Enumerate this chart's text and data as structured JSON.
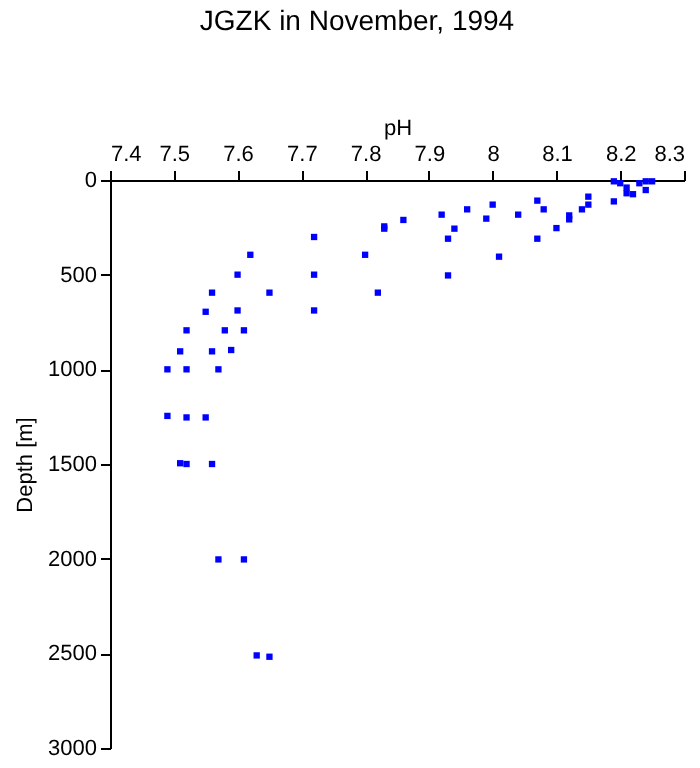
{
  "chart_data": {
    "type": "scatter",
    "title": "JGZK in November, 1994",
    "xlabel": "pH",
    "ylabel": "Depth [m]",
    "xlim": [
      7.4,
      8.3
    ],
    "xticks": [
      7.4,
      7.5,
      7.6,
      7.7,
      7.8,
      7.9,
      8,
      8.1,
      8.2,
      8.3
    ],
    "ylim": [
      3000,
      0
    ],
    "yticks": [
      0,
      500,
      1000,
      1500,
      2000,
      2500,
      3000
    ],
    "grid": false,
    "marker": "square",
    "series": [
      {
        "color": "#0000ff",
        "x": [
          8.19,
          8.2,
          8.21,
          8.21,
          8.22,
          8.23,
          8.24,
          8.25,
          8.24,
          8.19,
          8.15,
          8.15,
          8.14,
          8.12,
          8.12,
          8.1,
          8.08,
          8.07,
          8.07,
          8.04,
          8.0,
          7.99,
          8.01,
          7.96,
          7.94,
          7.93,
          7.92,
          7.93,
          7.86,
          7.83,
          7.8,
          7.82,
          7.72,
          7.83,
          7.62,
          7.6,
          7.72,
          7.56,
          7.65,
          7.55,
          7.6,
          7.72,
          7.52,
          7.58,
          7.61,
          7.51,
          7.56,
          7.59,
          7.49,
          7.52,
          7.57,
          7.49,
          7.52,
          7.55,
          7.51,
          7.52,
          7.56,
          7.57,
          7.61,
          7.63,
          7.65
        ],
        "values": [
          7,
          17,
          40,
          70,
          75,
          17,
          7,
          7,
          53,
          113,
          88,
          130,
          155,
          187,
          208,
          254,
          155,
          109,
          310,
          183,
          130,
          204,
          405,
          155,
          257,
          310,
          183,
          504,
          211,
          257,
          395,
          595,
          301,
          245,
          395,
          500,
          500,
          595,
          595,
          696,
          689,
          689,
          794,
          794,
          794,
          905,
          905,
          898,
          1000,
          1000,
          1000,
          1246,
          1254,
          1254,
          1496,
          1500,
          1500,
          2004,
          2004,
          2511,
          2518
        ]
      }
    ]
  }
}
